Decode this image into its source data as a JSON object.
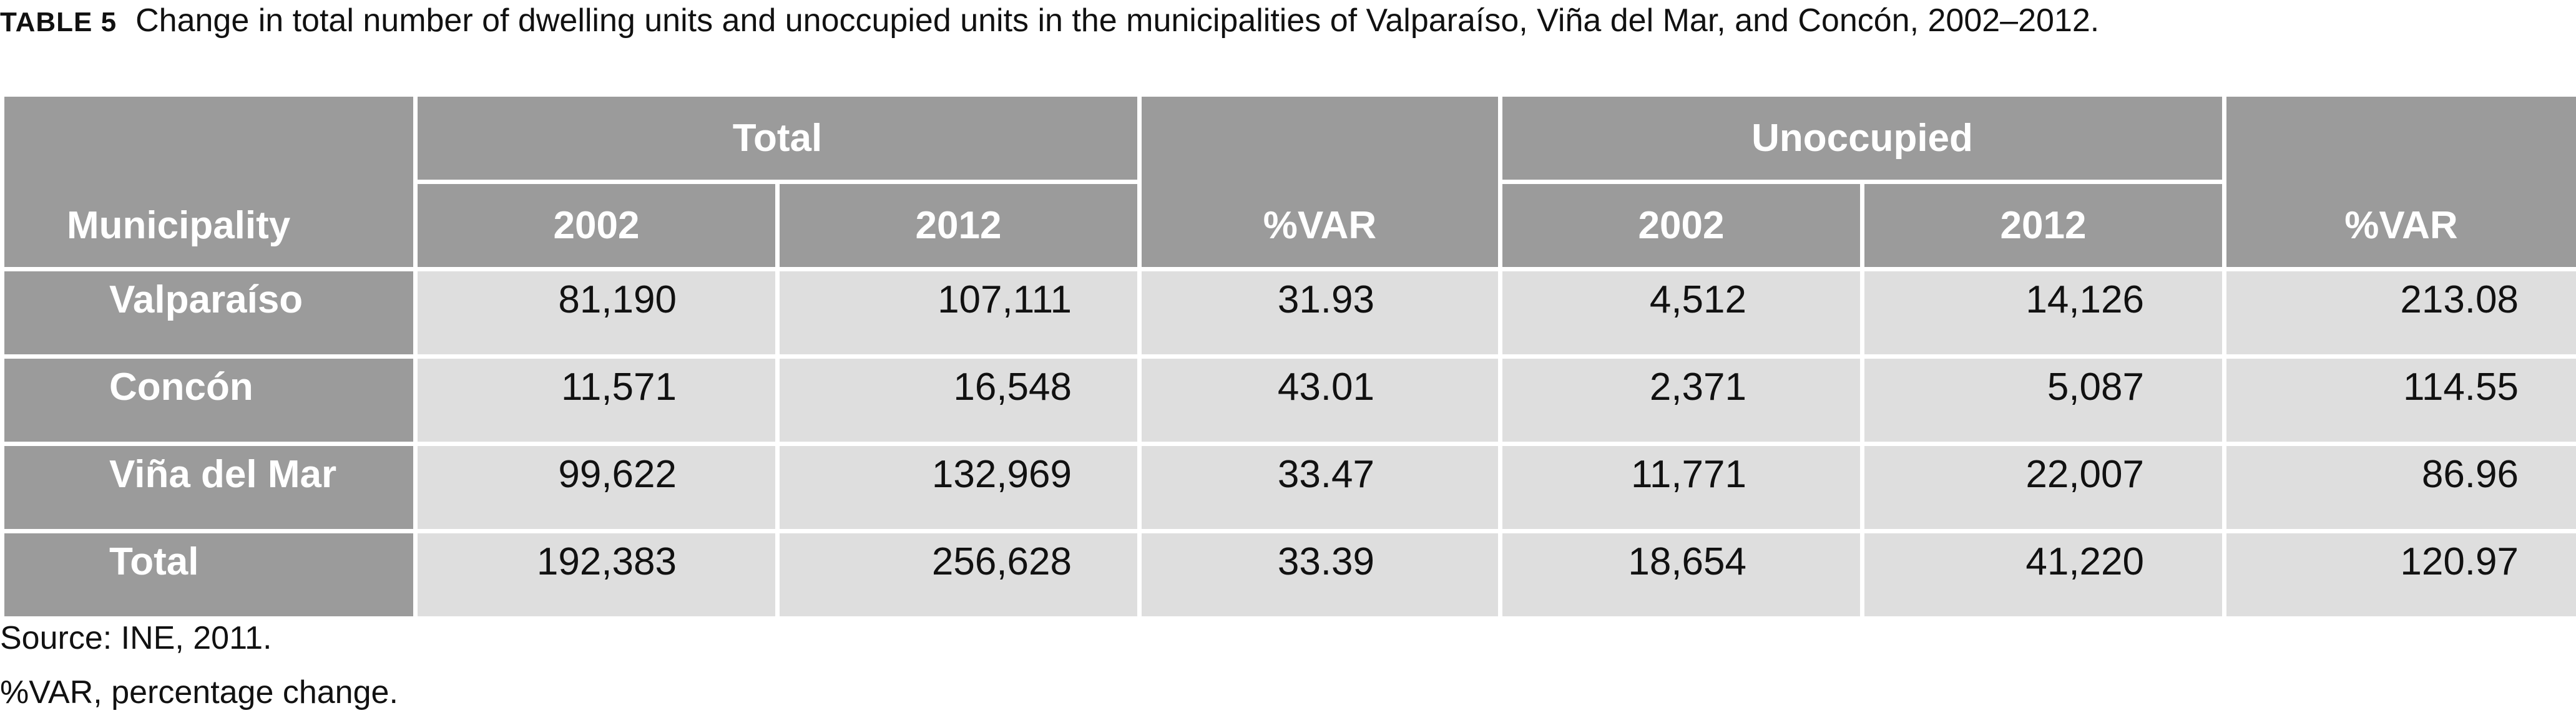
{
  "caption": {
    "label": "TABLE 5",
    "text": "Change in total number of dwelling units and unoccupied units in the municipalities of Valparaíso, Viña del Mar, and Concón, 2002–2012."
  },
  "table": {
    "group_headers": {
      "total": "Total",
      "unoccupied": "Unoccupied"
    },
    "column_headers": {
      "municipality": "Municipality",
      "total_2002": "2002",
      "total_2012": "2012",
      "total_var": "%VAR",
      "unocc_2002": "2002",
      "unocc_2012": "2012",
      "unocc_var": "%VAR"
    },
    "rows": [
      {
        "municipality": "Valparaíso",
        "total_2002": "81,190",
        "total_2012": "107,111",
        "total_var": "31.93",
        "unocc_2002": "4,512",
        "unocc_2012": "14,126",
        "unocc_var": "213.08"
      },
      {
        "municipality": "Concón",
        "total_2002": "11,571",
        "total_2012": "16,548",
        "total_var": "43.01",
        "unocc_2002": "2,371",
        "unocc_2012": "5,087",
        "unocc_var": "114.55"
      },
      {
        "municipality": "Viña del Mar",
        "total_2002": "99,622",
        "total_2012": "132,969",
        "total_var": "33.47",
        "unocc_2002": "11,771",
        "unocc_2012": "22,007",
        "unocc_var": "86.96"
      },
      {
        "municipality": "Total",
        "total_2002": "192,383",
        "total_2012": "256,628",
        "total_var": "33.39",
        "unocc_2002": "18,654",
        "unocc_2012": "41,220",
        "unocc_var": "120.97"
      }
    ]
  },
  "notes": {
    "source": "Source: INE, 2011.",
    "abbreviation": "%VAR, percentage change."
  },
  "colors": {
    "header_fill": "#9b9b9b",
    "cell_fill": "#dedede",
    "rule": "#ffffff"
  }
}
